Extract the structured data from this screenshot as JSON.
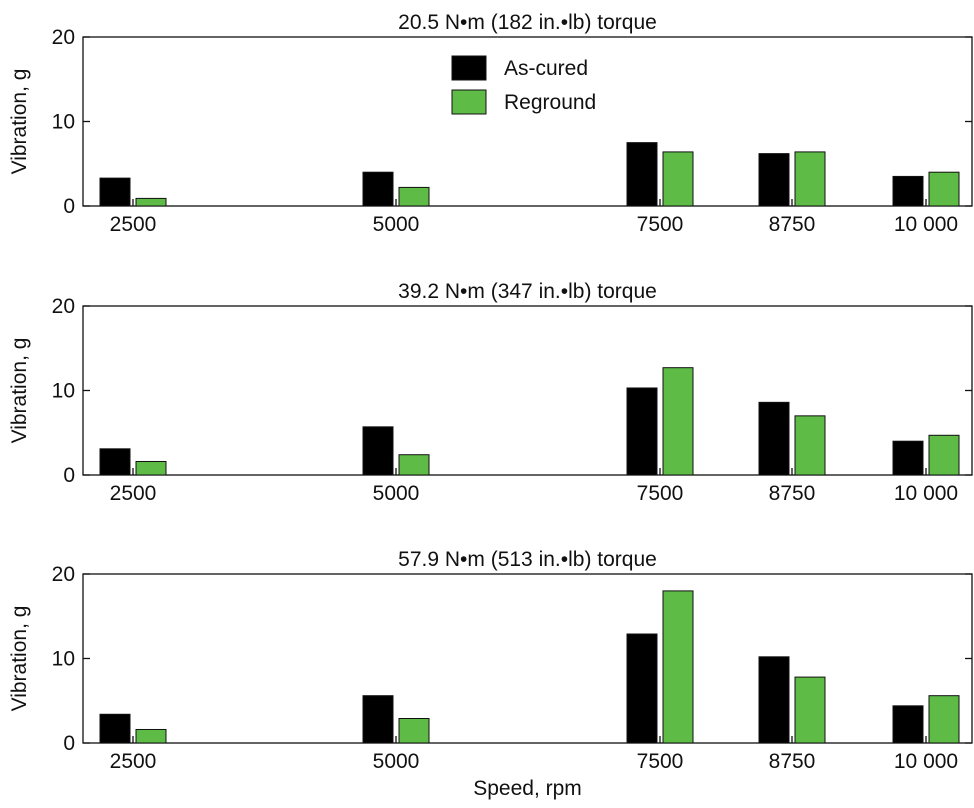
{
  "chart_data": [
    {
      "type": "bar",
      "title": "20.5 N•m (182 in.•lb) torque",
      "ylabel": "Vibration, g",
      "xlabel": "",
      "ylim": [
        0,
        20
      ],
      "yticks": [
        "0",
        "10",
        "20"
      ],
      "categories": [
        "2500",
        "5000",
        "7500",
        "8750",
        "10 000"
      ],
      "series": [
        {
          "name": "As-cured",
          "color": "#000000",
          "values": [
            3.3,
            4.0,
            7.5,
            6.2,
            3.5
          ]
        },
        {
          "name": "Reground",
          "color": "#5dbb46",
          "values": [
            0.9,
            2.2,
            6.4,
            6.4,
            4.0
          ]
        }
      ],
      "legend_position": "top-center"
    },
    {
      "type": "bar",
      "title": "39.2 N•m (347 in.•lb) torque",
      "ylabel": "Vibration, g",
      "xlabel": "",
      "ylim": [
        0,
        20
      ],
      "yticks": [
        "0",
        "10",
        "20"
      ],
      "categories": [
        "2500",
        "5000",
        "7500",
        "8750",
        "10 000"
      ],
      "series": [
        {
          "name": "As-cured",
          "color": "#000000",
          "values": [
            3.1,
            5.7,
            10.3,
            8.6,
            4.0
          ]
        },
        {
          "name": "Reground",
          "color": "#5dbb46",
          "values": [
            1.6,
            2.4,
            12.7,
            7.0,
            4.7
          ]
        }
      ]
    },
    {
      "type": "bar",
      "title": "57.9 N•m (513 in.•lb) torque",
      "ylabel": "Vibration, g",
      "xlabel": "Speed, rpm",
      "ylim": [
        0,
        20
      ],
      "yticks": [
        "0",
        "10",
        "20"
      ],
      "categories": [
        "2500",
        "5000",
        "7500",
        "8750",
        "10 000"
      ],
      "series": [
        {
          "name": "As-cured",
          "color": "#000000",
          "values": [
            3.4,
            5.6,
            12.9,
            10.2,
            4.4
          ]
        },
        {
          "name": "Reground",
          "color": "#5dbb46",
          "values": [
            1.6,
            2.9,
            18.0,
            7.8,
            5.6
          ]
        }
      ]
    }
  ]
}
